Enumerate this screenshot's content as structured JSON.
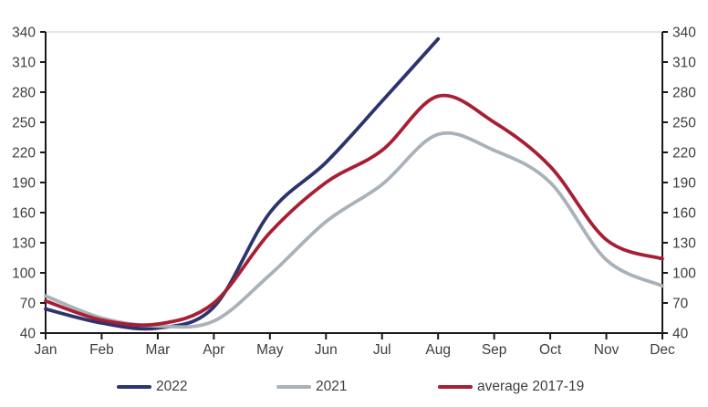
{
  "chart_data": {
    "type": "line",
    "title": "",
    "xlabel": "",
    "ylabel": "",
    "categories": [
      "Jan",
      "Feb",
      "Mar",
      "Apr",
      "May",
      "Jun",
      "Jul",
      "Aug",
      "Sep",
      "Oct",
      "Nov",
      "Dec"
    ],
    "series": [
      {
        "name": "2022",
        "color": "#2c336f",
        "values": [
          64,
          50,
          45,
          66,
          160,
          210,
          271,
          333,
          null,
          null,
          null,
          null
        ]
      },
      {
        "name": "2021",
        "color": "#aab2b9",
        "values": [
          77,
          55,
          47,
          52,
          98,
          151,
          188,
          238,
          222,
          190,
          113,
          87
        ]
      },
      {
        "name": "average 2017-19",
        "color": "#a81e33",
        "values": [
          72,
          53,
          49,
          70,
          140,
          190,
          222,
          276,
          250,
          206,
          133,
          114
        ]
      }
    ],
    "ylim": [
      40,
      340
    ],
    "yticks": [
      40,
      70,
      100,
      130,
      160,
      190,
      220,
      250,
      280,
      310,
      340
    ],
    "y_axis_sides": "both",
    "grid": "single horizontal gridline at y=340 only",
    "legend_position": "bottom",
    "colors": {
      "axis": "#1a1a1a",
      "tick_label": "#3e3e3e",
      "gridline": "#dedede",
      "background": "#ffffff"
    }
  }
}
